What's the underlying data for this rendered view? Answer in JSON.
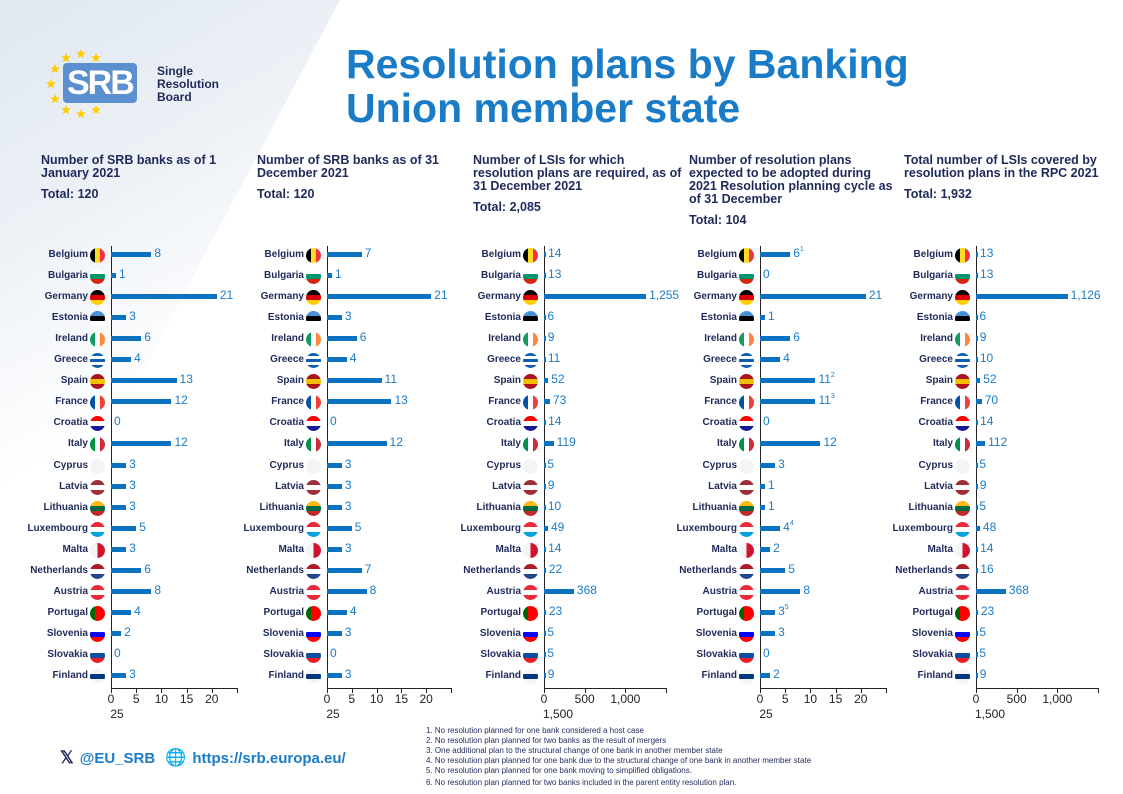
{
  "title": "Resolution plans by Banking Union member state",
  "logo": {
    "text": "SRB",
    "name_lines": [
      "Single",
      "Resolution",
      "Board"
    ]
  },
  "countries": [
    {
      "name": "Belgium",
      "flag": {
        "dir": "90deg",
        "colors": [
          "#000000",
          "#fdda24",
          "#ef3340"
        ]
      }
    },
    {
      "name": "Bulgaria",
      "flag": {
        "dir": "180deg",
        "colors": [
          "#ffffff",
          "#00966e",
          "#d62612"
        ]
      }
    },
    {
      "name": "Germany",
      "flag": {
        "dir": "180deg",
        "colors": [
          "#000000",
          "#dd0000",
          "#ffce00"
        ]
      }
    },
    {
      "name": "Estonia",
      "flag": {
        "dir": "180deg",
        "colors": [
          "#4891d9",
          "#000000",
          "#ffffff"
        ]
      }
    },
    {
      "name": "Ireland",
      "flag": {
        "dir": "90deg",
        "colors": [
          "#169b62",
          "#ffffff",
          "#ff883e"
        ]
      }
    },
    {
      "name": "Greece",
      "flag": {
        "dir": "180deg",
        "colors": [
          "#0d5eaf",
          "#ffffff",
          "#0d5eaf",
          "#ffffff",
          "#0d5eaf"
        ]
      }
    },
    {
      "name": "Spain",
      "flag": {
        "dir": "180deg",
        "colors": [
          "#aa151b",
          "#f1bf00",
          "#aa151b"
        ]
      }
    },
    {
      "name": "France",
      "flag": {
        "dir": "90deg",
        "colors": [
          "#0055a4",
          "#ffffff",
          "#ef4135"
        ]
      }
    },
    {
      "name": "Croatia",
      "flag": {
        "dir": "180deg",
        "colors": [
          "#ff0000",
          "#ffffff",
          "#171796"
        ]
      }
    },
    {
      "name": "Italy",
      "flag": {
        "dir": "90deg",
        "colors": [
          "#009246",
          "#ffffff",
          "#ce2b37"
        ]
      }
    },
    {
      "name": "Cyprus",
      "flag": {
        "dir": "180deg",
        "colors": [
          "#f4f4f4",
          "#f4f4f4",
          "#f4f4f4"
        ]
      }
    },
    {
      "name": "Latvia",
      "flag": {
        "dir": "180deg",
        "colors": [
          "#9e3039",
          "#ffffff",
          "#9e3039"
        ]
      }
    },
    {
      "name": "Lithuania",
      "flag": {
        "dir": "180deg",
        "colors": [
          "#fdb913",
          "#006a44",
          "#c1272d"
        ]
      }
    },
    {
      "name": "Luxembourg",
      "flag": {
        "dir": "180deg",
        "colors": [
          "#ed2939",
          "#ffffff",
          "#00a1de"
        ]
      }
    },
    {
      "name": "Malta",
      "flag": {
        "dir": "90deg",
        "colors": [
          "#f4f4f4",
          "#cf142b"
        ]
      }
    },
    {
      "name": "Netherlands",
      "flag": {
        "dir": "180deg",
        "colors": [
          "#ae1c28",
          "#ffffff",
          "#21468b"
        ]
      }
    },
    {
      "name": "Austria",
      "flag": {
        "dir": "180deg",
        "colors": [
          "#ed2939",
          "#ffffff",
          "#ed2939"
        ]
      }
    },
    {
      "name": "Portugal",
      "flag": {
        "dir": "90deg",
        "colors": [
          "#006600",
          "#ff0000",
          "#ff0000"
        ]
      }
    },
    {
      "name": "Slovenia",
      "flag": {
        "dir": "180deg",
        "colors": [
          "#ffffff",
          "#0000ff",
          "#ff0000"
        ]
      }
    },
    {
      "name": "Slovakia",
      "flag": {
        "dir": "180deg",
        "colors": [
          "#ffffff",
          "#0b4ea2",
          "#ee1c25"
        ]
      }
    },
    {
      "name": "Finland",
      "flag": {
        "dir": "180deg",
        "colors": [
          "#f4f4f4",
          "#003580",
          "#f4f4f4"
        ]
      }
    }
  ],
  "chart_data": [
    {
      "type": "bar",
      "orientation": "horizontal",
      "title": "Number of SRB banks as of 1 January 2021",
      "total": "Total: 120",
      "xlim": [
        0,
        25
      ],
      "ticks": [
        "0",
        "5",
        "10",
        "15",
        "20",
        "25"
      ],
      "values": [
        8,
        1,
        21,
        3,
        6,
        4,
        13,
        12,
        0,
        12,
        3,
        3,
        3,
        5,
        3,
        6,
        8,
        4,
        2,
        0,
        3
      ],
      "notes": {}
    },
    {
      "type": "bar",
      "orientation": "horizontal",
      "title": "Number of SRB banks as of 31 December 2021",
      "total": "Total: 120",
      "xlim": [
        0,
        25
      ],
      "ticks": [
        "0",
        "5",
        "10",
        "15",
        "20",
        "25"
      ],
      "values": [
        7,
        1,
        21,
        3,
        6,
        4,
        11,
        13,
        0,
        12,
        3,
        3,
        3,
        5,
        3,
        7,
        8,
        4,
        3,
        0,
        3
      ],
      "notes": {}
    },
    {
      "type": "bar",
      "orientation": "horizontal",
      "title": "Number of LSIs for which resolution plans are required, as of 31 December 2021",
      "total": "Total: 2,085",
      "xlim": [
        0,
        1500
      ],
      "ticks": [
        "0",
        "500",
        "1,000",
        "1,500"
      ],
      "values": [
        14,
        13,
        1255,
        6,
        9,
        11,
        52,
        73,
        14,
        119,
        5,
        9,
        10,
        49,
        14,
        22,
        368,
        23,
        5,
        5,
        9
      ],
      "notes": {}
    },
    {
      "type": "bar",
      "orientation": "horizontal",
      "title": "Number of resolution plans expected to be adopted during 2021 Resolution planning cycle as of 31 December",
      "total": "Total: 104",
      "xlim": [
        0,
        25
      ],
      "ticks": [
        "0",
        "5",
        "10",
        "15",
        "20",
        "25"
      ],
      "values": [
        6,
        0,
        21,
        1,
        6,
        4,
        11,
        11,
        0,
        12,
        3,
        1,
        1,
        4,
        2,
        5,
        8,
        3,
        3,
        0,
        2
      ],
      "notes": {
        "0": "1",
        "6": "2",
        "7": "3",
        "13": "4",
        "17": "5"
      }
    },
    {
      "type": "bar",
      "orientation": "horizontal",
      "title": "Total number of LSIs covered by resolution plans in the RPC 2021",
      "total": "Total: 1,932",
      "xlim": [
        0,
        1500
      ],
      "ticks": [
        "0",
        "500",
        "1,000",
        "1,500"
      ],
      "values": [
        13,
        13,
        1126,
        6,
        9,
        10,
        52,
        70,
        14,
        112,
        5,
        9,
        5,
        48,
        14,
        16,
        368,
        23,
        5,
        5,
        9
      ],
      "notes": {}
    }
  ],
  "footnotes": [
    "1.  No resolution planned for one bank considered a host case",
    "2.  No resolution plan planned for two banks as the result of mergers",
    "3.  One additional plan to the structural change of one bank in another member state",
    "4.  No resolution plan planned for one bank due to the structural change of one bank in another member state",
    "5.  No resolution plan planned for one bank moving to simplified obligations.",
    "6.  No resolution plan planned for two banks included in the parent entity resolution plan."
  ],
  "footer": {
    "twitter": "@EU_SRB",
    "website": "https://srb.europa.eu/"
  },
  "colors": {
    "bar": "#0a72c0",
    "value": "#1a7cc7",
    "title": "#1a7cc7",
    "text": "#1f2a5a"
  }
}
